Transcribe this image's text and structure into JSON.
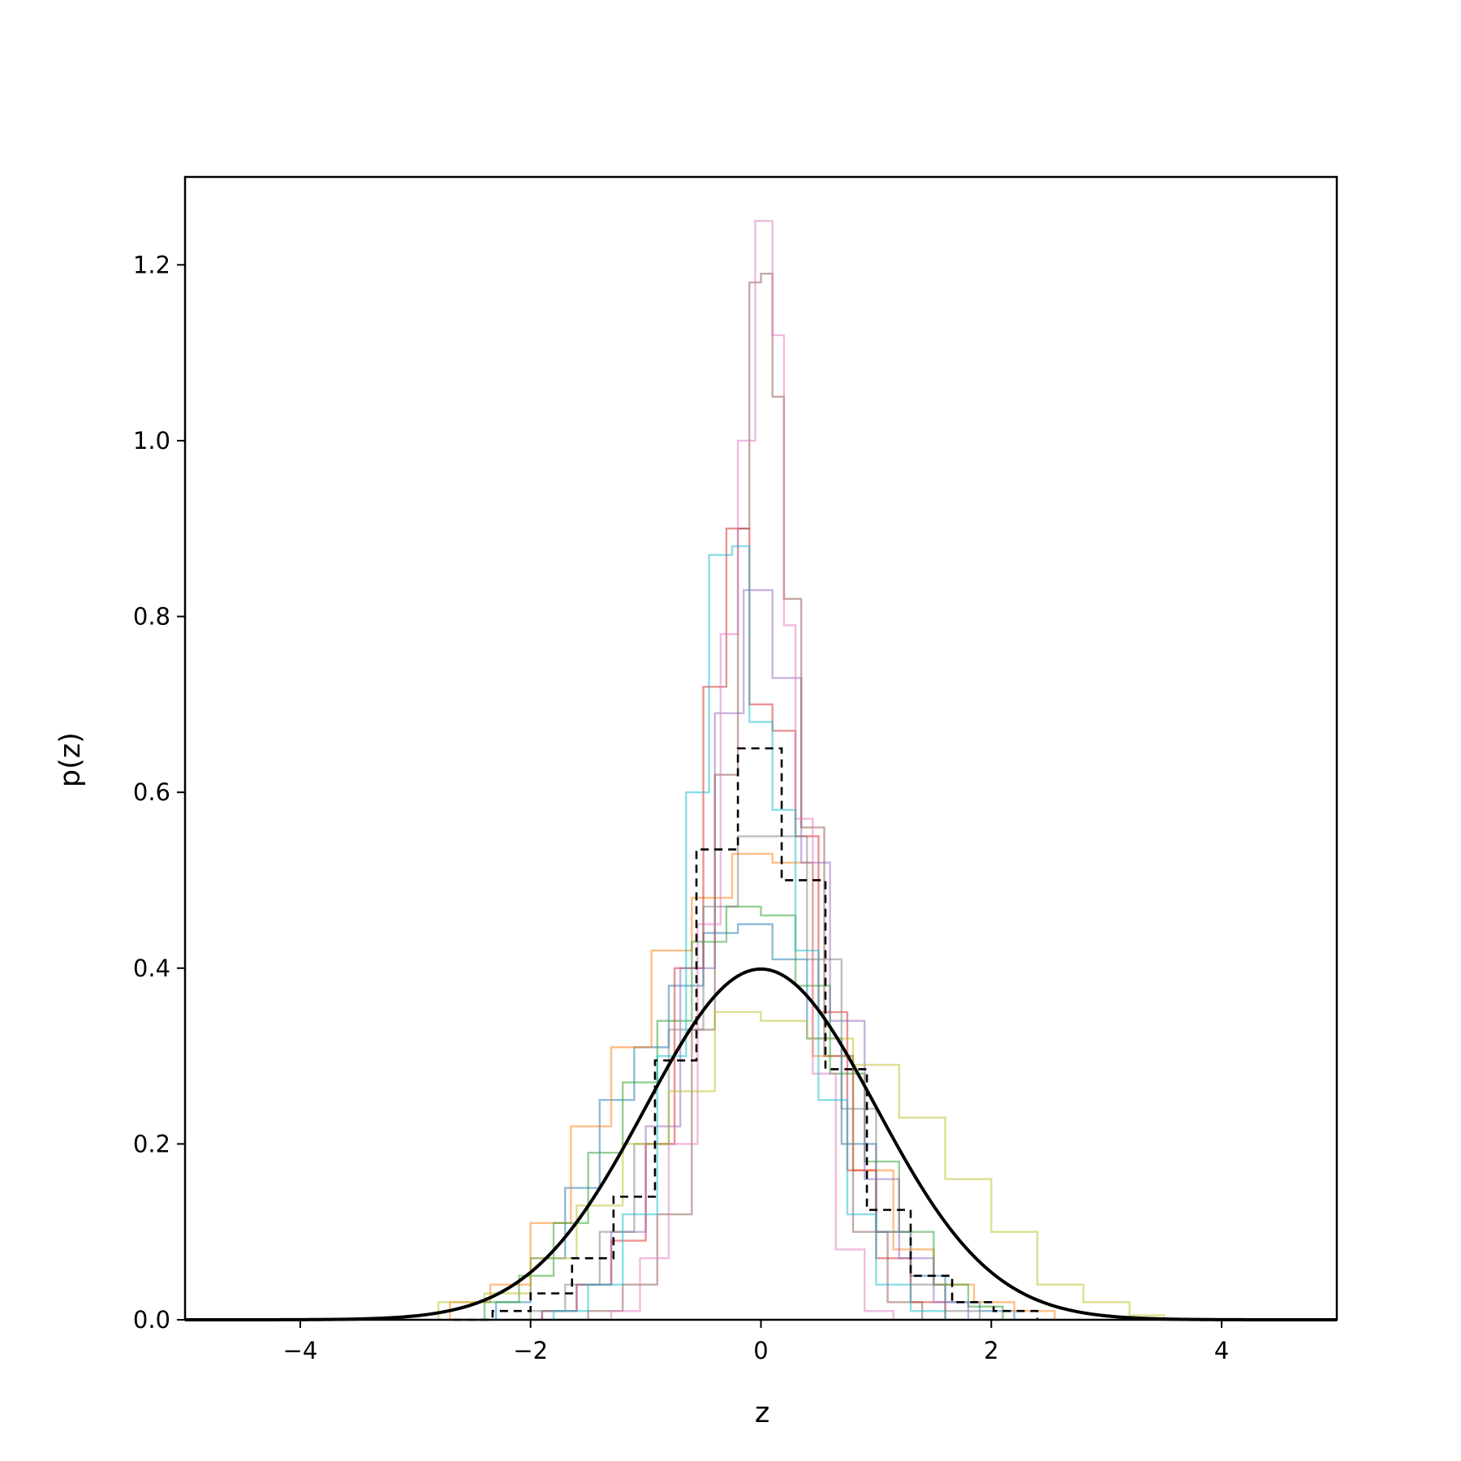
{
  "chart_data": {
    "type": "line",
    "title": "",
    "xlabel": "z",
    "ylabel": "p(z)",
    "xlim": [
      -5,
      5
    ],
    "ylim": [
      0,
      1.3
    ],
    "grid": false,
    "legend": "none",
    "x_ticks": [
      -4,
      -2,
      0,
      2,
      4
    ],
    "x_tick_labels": [
      "−4",
      "−2",
      "0",
      "2",
      "4"
    ],
    "y_ticks": [
      0.0,
      0.2,
      0.4,
      0.6,
      0.8,
      1.0,
      1.2
    ],
    "y_tick_labels": [
      "0.0",
      "0.2",
      "0.4",
      "0.6",
      "0.8",
      "1.0",
      "1.2"
    ],
    "reference_curve": {
      "style": "solid",
      "color": "#000000",
      "description": "standard normal density",
      "mu": 0,
      "sigma": 1,
      "peak": 0.399
    },
    "histograms": [
      {
        "color": "#000000",
        "style": "dashed",
        "edges": [
          -2.67,
          -2.33,
          -2.0,
          -1.64,
          -1.28,
          -0.92,
          -0.56,
          -0.2,
          0.18,
          0.56,
          0.92,
          1.3,
          1.66,
          2.02,
          2.4
        ],
        "values": [
          0.0,
          0.01,
          0.03,
          0.07,
          0.14,
          0.295,
          0.535,
          0.65,
          0.5,
          0.285,
          0.125,
          0.05,
          0.02,
          0.01
        ]
      },
      {
        "color": "#1f77b4",
        "style": "solid",
        "edges": [
          -2.3,
          -2.0,
          -1.7,
          -1.4,
          -1.1,
          -0.8,
          -0.5,
          -0.2,
          0.1,
          0.4,
          0.7,
          1.0,
          1.3,
          1.6,
          1.9,
          2.2
        ],
        "values": [
          0.02,
          0.07,
          0.15,
          0.25,
          0.31,
          0.38,
          0.44,
          0.45,
          0.41,
          0.32,
          0.2,
          0.1,
          0.05,
          0.02,
          0.01
        ]
      },
      {
        "color": "#ff7f0e",
        "style": "solid",
        "edges": [
          -2.7,
          -2.35,
          -2.0,
          -1.65,
          -1.3,
          -0.95,
          -0.6,
          -0.25,
          0.1,
          0.45,
          0.8,
          1.15,
          1.5,
          1.85,
          2.2,
          2.55
        ],
        "values": [
          0.02,
          0.04,
          0.11,
          0.22,
          0.31,
          0.42,
          0.48,
          0.53,
          0.52,
          0.3,
          0.17,
          0.08,
          0.04,
          0.02,
          0.01
        ]
      },
      {
        "color": "#2ca02c",
        "style": "solid",
        "edges": [
          -2.4,
          -2.1,
          -1.8,
          -1.5,
          -1.2,
          -0.9,
          -0.6,
          -0.3,
          0.0,
          0.3,
          0.6,
          0.9,
          1.2,
          1.5,
          1.8,
          2.1
        ],
        "values": [
          0.02,
          0.05,
          0.11,
          0.19,
          0.27,
          0.34,
          0.43,
          0.47,
          0.46,
          0.38,
          0.28,
          0.18,
          0.1,
          0.04,
          0.015
        ]
      },
      {
        "color": "#d62728",
        "style": "solid",
        "edges": [
          -1.9,
          -1.6,
          -1.3,
          -1.0,
          -0.75,
          -0.5,
          -0.3,
          -0.1,
          0.1,
          0.3,
          0.5,
          0.75,
          1.0,
          1.3,
          1.6
        ],
        "values": [
          0.01,
          0.04,
          0.09,
          0.2,
          0.4,
          0.72,
          0.9,
          0.7,
          0.67,
          0.55,
          0.35,
          0.17,
          0.07,
          0.02
        ]
      },
      {
        "color": "#9467bd",
        "style": "solid",
        "edges": [
          -1.9,
          -1.6,
          -1.3,
          -1.0,
          -0.7,
          -0.4,
          -0.15,
          0.1,
          0.35,
          0.6,
          0.9,
          1.2,
          1.5,
          1.8
        ],
        "values": [
          0.01,
          0.04,
          0.1,
          0.22,
          0.4,
          0.69,
          0.83,
          0.73,
          0.52,
          0.34,
          0.16,
          0.07,
          0.02
        ]
      },
      {
        "color": "#8c564b",
        "style": "solid",
        "edges": [
          -1.5,
          -1.2,
          -0.9,
          -0.6,
          -0.4,
          -0.2,
          -0.1,
          0.0,
          0.1,
          0.2,
          0.35,
          0.55,
          0.8,
          1.1,
          1.4
        ],
        "values": [
          0.01,
          0.04,
          0.12,
          0.33,
          0.62,
          0.9,
          1.18,
          1.19,
          1.05,
          0.82,
          0.56,
          0.3,
          0.1,
          0.02
        ]
      },
      {
        "color": "#e377c2",
        "style": "solid",
        "edges": [
          -1.3,
          -1.05,
          -0.8,
          -0.55,
          -0.35,
          -0.2,
          -0.05,
          0.1,
          0.2,
          0.3,
          0.45,
          0.65,
          0.9,
          1.15
        ],
        "values": [
          0.01,
          0.07,
          0.2,
          0.45,
          0.78,
          1.0,
          1.25,
          1.12,
          0.79,
          0.57,
          0.28,
          0.08,
          0.01
        ]
      },
      {
        "color": "#7f7f7f",
        "style": "solid",
        "edges": [
          -2.0,
          -1.7,
          -1.4,
          -1.1,
          -0.8,
          -0.5,
          -0.2,
          0.1,
          0.4,
          0.7,
          1.0,
          1.3,
          1.6,
          1.9
        ],
        "values": [
          0.01,
          0.04,
          0.1,
          0.2,
          0.33,
          0.47,
          0.55,
          0.55,
          0.41,
          0.24,
          0.1,
          0.04,
          0.01
        ]
      },
      {
        "color": "#bcbd22",
        "style": "solid",
        "edges": [
          -2.8,
          -2.4,
          -2.0,
          -1.6,
          -1.2,
          -0.8,
          -0.4,
          0.0,
          0.4,
          0.8,
          1.2,
          1.6,
          2.0,
          2.4,
          2.8,
          3.2,
          3.5
        ],
        "values": [
          0.02,
          0.03,
          0.07,
          0.13,
          0.2,
          0.26,
          0.35,
          0.34,
          0.32,
          0.29,
          0.23,
          0.16,
          0.1,
          0.04,
          0.02,
          0.005
        ]
      },
      {
        "color": "#17becf",
        "style": "solid",
        "edges": [
          -1.8,
          -1.5,
          -1.2,
          -0.9,
          -0.65,
          -0.45,
          -0.25,
          -0.1,
          0.1,
          0.3,
          0.5,
          0.75,
          1.0,
          1.3,
          1.6
        ],
        "values": [
          0.01,
          0.04,
          0.12,
          0.3,
          0.6,
          0.87,
          0.88,
          0.68,
          0.58,
          0.42,
          0.25,
          0.12,
          0.04,
          0.01
        ]
      }
    ]
  }
}
